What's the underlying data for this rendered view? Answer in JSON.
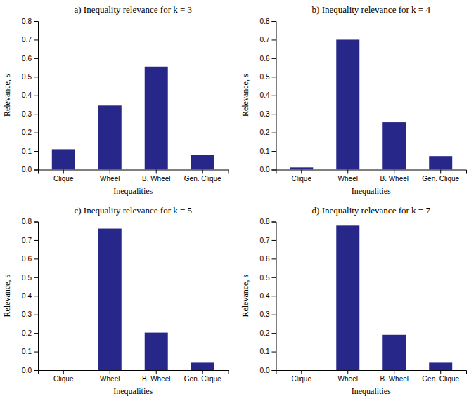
{
  "chart_data": [
    {
      "type": "bar",
      "title": "a) Inequality relevance for k = 3",
      "categories": [
        "Clique",
        "Wheel",
        "B. Wheel",
        "Gen. Clique"
      ],
      "values": [
        0.11,
        0.345,
        0.555,
        0.08
      ],
      "color": "#27278A",
      "xlabel": "Inequalities",
      "ylabel": "Relevance, s",
      "ylim": [
        0,
        0.8
      ],
      "yticks": [
        {
          "value": 0,
          "label": "0.0"
        },
        0.1,
        0.2,
        0.3,
        0.4,
        0.5,
        0.6,
        0.7,
        0.8
      ],
      "grid": false
    },
    {
      "type": "bar",
      "title": "b) Inequality relevance for k = 4",
      "categories": [
        "Clique",
        "Wheel",
        "B. Wheel",
        "Gen. Clique"
      ],
      "values": [
        0.012,
        0.7,
        0.255,
        0.073
      ],
      "color": "#27278A",
      "xlabel": "Inequalities",
      "ylabel": "Relevance, s",
      "ylim": [
        0,
        0.8
      ],
      "yticks": [
        {
          "value": 0,
          "label": "0.0"
        },
        0.1,
        0.2,
        0.3,
        0.4,
        0.5,
        0.6,
        0.7,
        0.8
      ],
      "grid": false
    },
    {
      "type": "bar",
      "title": "c) Inequality relevance for k = 5",
      "categories": [
        "Clique",
        "Wheel",
        "B. Wheel",
        "Gen. Clique"
      ],
      "values": [
        0.0,
        0.762,
        0.202,
        0.04
      ],
      "color": "#27278A",
      "xlabel": "Inequalities",
      "ylabel": "Relevance, s",
      "ylim": [
        0,
        0.8
      ],
      "yticks": [
        {
          "value": 0,
          "label": "0.0"
        },
        0.1,
        0.2,
        0.3,
        0.4,
        0.5,
        0.6,
        0.7,
        0.8
      ],
      "grid": false
    },
    {
      "type": "bar",
      "title": "d) Inequality relevance for k = 7",
      "categories": [
        "Clique",
        "Wheel",
        "B. Wheel",
        "Gen. Clique"
      ],
      "values": [
        0.0,
        0.778,
        0.19,
        0.04
      ],
      "color": "#27278A",
      "xlabel": "Inequalities",
      "ylabel": "Relevance, s",
      "ylim": [
        0,
        0.8
      ],
      "yticks": [
        {
          "value": 0,
          "label": "0.0"
        },
        0.1,
        0.2,
        0.3,
        0.4,
        0.5,
        0.6,
        0.7,
        0.8
      ],
      "grid": false
    }
  ]
}
